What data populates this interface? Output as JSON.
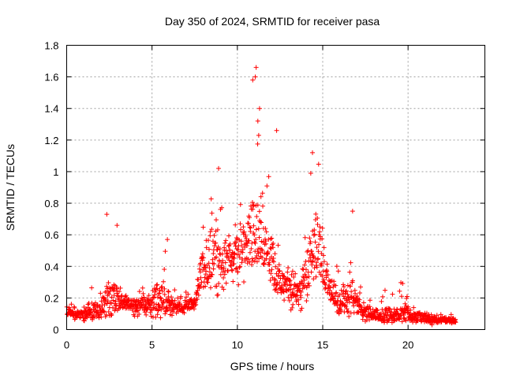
{
  "chart_data": {
    "type": "scatter",
    "title": "Day 350 of 2024, SRMTID for receiver pasa",
    "xlabel": "GPS time / hours",
    "ylabel": "SRMTID / TECUs",
    "xlim": [
      0,
      24.5
    ],
    "ylim": [
      0,
      1.8
    ],
    "x_ticks": [
      0,
      5,
      10,
      15,
      20
    ],
    "x_tick_labels": [
      "0",
      "5",
      "10",
      "15",
      "20"
    ],
    "y_ticks": [
      0,
      0.2,
      0.4,
      0.6,
      0.8,
      1.0,
      1.2,
      1.4,
      1.6,
      1.8
    ],
    "y_tick_labels": [
      "0",
      "0.2",
      "0.4",
      "0.6",
      "0.8",
      "1",
      "1.2",
      "1.4",
      "1.6",
      "1.8"
    ],
    "grid": true,
    "marker": "plus",
    "color": "#ff0000",
    "series": [
      {
        "name": "SRMTID",
        "envelope": {
          "x": [
            0,
            0.5,
            1.0,
            1.5,
            2.0,
            2.4,
            2.8,
            3.2,
            3.6,
            4.0,
            4.5,
            5.0,
            5.4,
            5.8,
            6.2,
            6.6,
            7.0,
            7.5,
            7.9,
            8.3,
            8.7,
            9.1,
            9.5,
            9.8,
            10.2,
            10.6,
            10.9,
            11.2,
            11.5,
            11.9,
            12.3,
            12.7,
            13.1,
            13.5,
            13.9,
            14.3,
            14.7,
            15.1,
            15.5,
            15.9,
            16.3,
            16.7,
            17.1,
            17.5,
            17.9,
            18.3,
            18.7,
            19.1,
            19.5,
            19.9,
            20.3,
            20.7,
            21.1,
            21.5,
            21.9,
            22.3,
            22.8
          ],
          "low": [
            0.08,
            0.06,
            0.05,
            0.06,
            0.07,
            0.1,
            0.1,
            0.12,
            0.1,
            0.08,
            0.08,
            0.08,
            0.07,
            0.08,
            0.08,
            0.1,
            0.1,
            0.12,
            0.2,
            0.2,
            0.2,
            0.2,
            0.3,
            0.3,
            0.25,
            0.35,
            0.4,
            0.45,
            0.4,
            0.3,
            0.2,
            0.15,
            0.12,
            0.12,
            0.1,
            0.3,
            0.3,
            0.25,
            0.12,
            0.1,
            0.08,
            0.08,
            0.06,
            0.05,
            0.04,
            0.04,
            0.04,
            0.04,
            0.04,
            0.04,
            0.04,
            0.04,
            0.03,
            0.03,
            0.03,
            0.03,
            0.03
          ],
          "high": [
            0.18,
            0.15,
            0.14,
            0.3,
            0.25,
            0.7,
            0.5,
            0.3,
            0.26,
            0.25,
            0.27,
            0.35,
            0.45,
            0.5,
            0.28,
            0.22,
            0.24,
            0.26,
            0.7,
            0.85,
            1.02,
            0.8,
            0.75,
            0.7,
            0.9,
            0.95,
            1.65,
            1.35,
            0.85,
            1.0,
            0.7,
            0.45,
            0.4,
            0.38,
            0.6,
            0.9,
            1.1,
            0.8,
            0.45,
            0.4,
            0.42,
            0.75,
            0.3,
            0.22,
            0.18,
            0.18,
            0.28,
            0.25,
            0.3,
            0.3,
            0.15,
            0.16,
            0.12,
            0.1,
            0.1,
            0.1,
            0.1
          ],
          "typical": [
            0.12,
            0.1,
            0.09,
            0.12,
            0.13,
            0.18,
            0.2,
            0.18,
            0.16,
            0.15,
            0.16,
            0.18,
            0.22,
            0.2,
            0.15,
            0.14,
            0.15,
            0.17,
            0.35,
            0.45,
            0.5,
            0.45,
            0.45,
            0.45,
            0.5,
            0.55,
            0.65,
            0.6,
            0.55,
            0.5,
            0.35,
            0.28,
            0.25,
            0.22,
            0.3,
            0.5,
            0.55,
            0.4,
            0.25,
            0.2,
            0.2,
            0.25,
            0.15,
            0.12,
            0.1,
            0.09,
            0.1,
            0.1,
            0.1,
            0.12,
            0.08,
            0.08,
            0.07,
            0.06,
            0.06,
            0.06,
            0.05
          ]
        },
        "notable_points": [
          {
            "x": 11.1,
            "y": 1.66
          },
          {
            "x": 11.05,
            "y": 1.6
          },
          {
            "x": 10.9,
            "y": 1.58
          },
          {
            "x": 11.3,
            "y": 1.4
          },
          {
            "x": 11.2,
            "y": 1.32
          },
          {
            "x": 12.3,
            "y": 1.26
          },
          {
            "x": 11.25,
            "y": 1.23
          },
          {
            "x": 14.4,
            "y": 1.12
          },
          {
            "x": 8.9,
            "y": 1.02
          },
          {
            "x": 14.3,
            "y": 0.99
          },
          {
            "x": 2.35,
            "y": 0.73
          },
          {
            "x": 16.75,
            "y": 0.75
          },
          {
            "x": 5.9,
            "y": 0.57
          },
          {
            "x": 2.95,
            "y": 0.66
          }
        ]
      }
    ]
  }
}
